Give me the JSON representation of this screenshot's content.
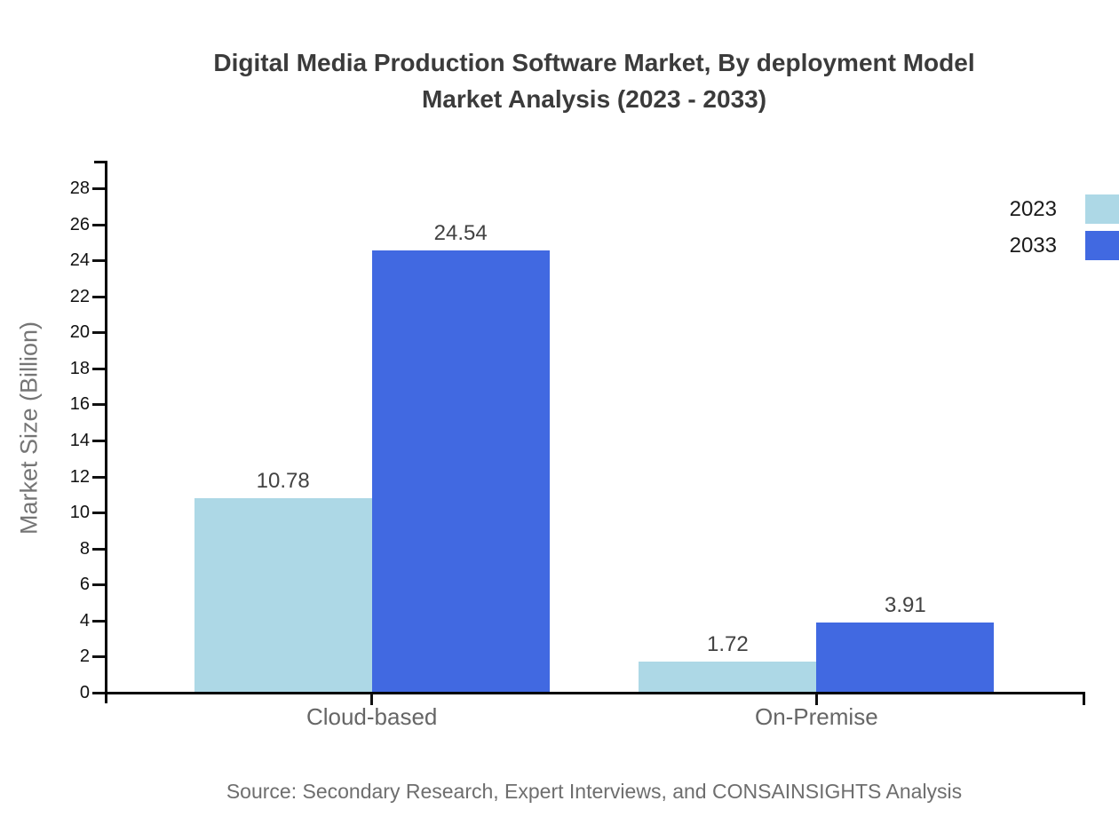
{
  "title": {
    "line1": "Digital Media Production Software Market, By deployment Model",
    "line2": "Market Analysis (2023 - 2033)"
  },
  "legend": {
    "items": [
      {
        "label": "2023",
        "color": "#ADD8E6"
      },
      {
        "label": "2033",
        "color": "#4169E1"
      }
    ]
  },
  "source": "Source: Secondary Research, Expert Interviews, and CONSAINSIGHTS Analysis",
  "chart_data": {
    "type": "bar",
    "title": "Digital Media Production Software Market, By deployment Model Market Analysis (2023 - 2033)",
    "categories": [
      "Cloud-based",
      "On-Premise"
    ],
    "series": [
      {
        "name": "2023",
        "color": "#ADD8E6",
        "values": [
          10.78,
          1.72
        ]
      },
      {
        "name": "2033",
        "color": "#4169E1",
        "values": [
          24.54,
          3.91
        ]
      }
    ],
    "xlabel": "",
    "ylabel": "Market Size (Billion)",
    "ylim": [
      0,
      28
    ],
    "ytick_step": 2,
    "grid": false,
    "legend_position": "top-right",
    "value_labels": true,
    "value_label_decimals": 2
  }
}
